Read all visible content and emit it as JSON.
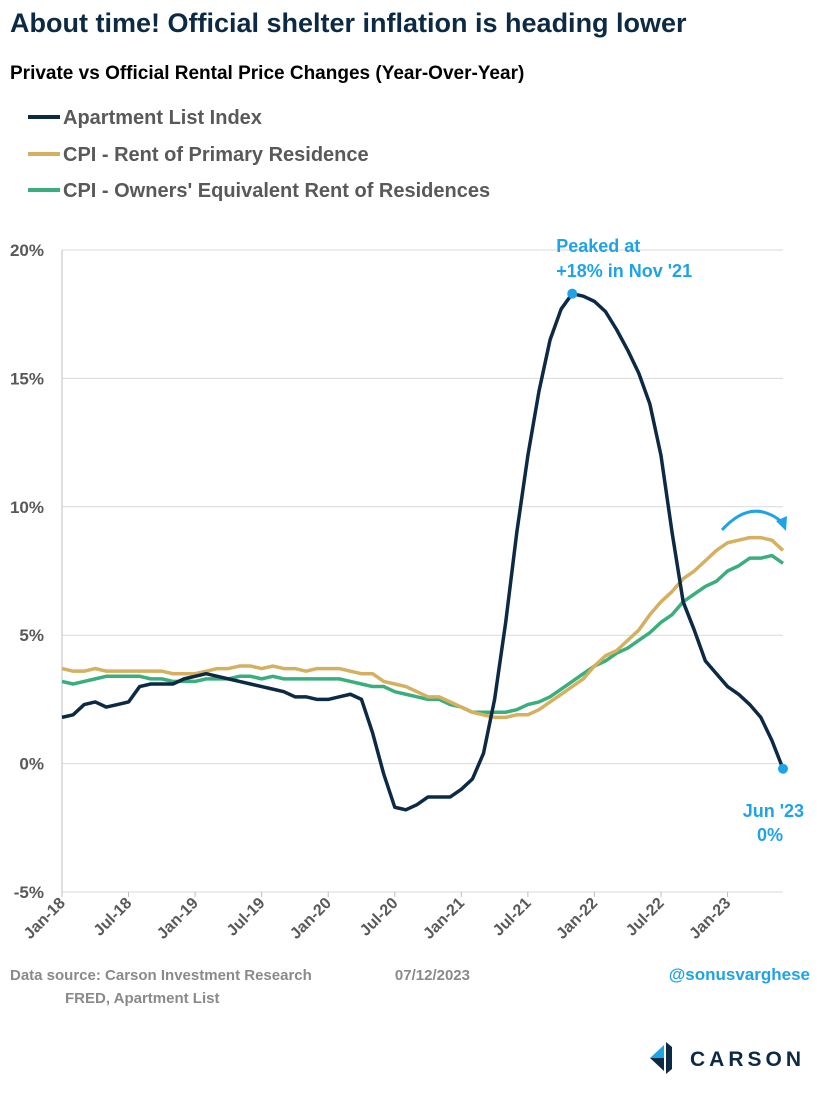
{
  "chart_data": {
    "type": "line",
    "title": "About time! Official shelter inflation is heading lower",
    "subtitle": "Private vs Official Rental Price Changes (Year-Over-Year)",
    "categories": [
      "Jan-18",
      null,
      null,
      null,
      null,
      null,
      "Jul-18",
      null,
      null,
      null,
      null,
      null,
      "Jan-19",
      null,
      null,
      null,
      null,
      null,
      "Jul-19",
      null,
      null,
      null,
      null,
      null,
      "Jan-20",
      null,
      null,
      null,
      null,
      null,
      "Jul-20",
      null,
      null,
      null,
      null,
      null,
      "Jan-21",
      null,
      null,
      null,
      null,
      null,
      "Jul-21",
      null,
      null,
      null,
      null,
      null,
      "Jan-22",
      null,
      null,
      null,
      null,
      null,
      "Jul-22",
      null,
      null,
      null,
      null,
      null,
      "Jan-23",
      null,
      null,
      null,
      null,
      null
    ],
    "series": [
      {
        "name": "Apartment List Index",
        "color": "#0d2a45",
        "values": [
          1.8,
          1.9,
          2.3,
          2.4,
          2.2,
          2.3,
          2.4,
          3.0,
          3.1,
          3.1,
          3.1,
          3.3,
          3.4,
          3.5,
          3.4,
          3.3,
          3.2,
          3.1,
          3.0,
          2.9,
          2.8,
          2.6,
          2.6,
          2.5,
          2.5,
          2.6,
          2.7,
          2.5,
          1.2,
          -0.4,
          -1.7,
          -1.8,
          -1.6,
          -1.3,
          -1.3,
          -1.3,
          -1.0,
          -0.6,
          0.4,
          2.5,
          5.5,
          9.0,
          12.0,
          14.5,
          16.5,
          17.7,
          18.3,
          18.2,
          18.0,
          17.6,
          16.9,
          16.1,
          15.2,
          14.0,
          12.0,
          9.0,
          6.3,
          5.2,
          4.0,
          3.5,
          3.0,
          2.7,
          2.3,
          1.8,
          0.9,
          -0.2
        ]
      },
      {
        "name": "CPI - Rent of Primary Residence",
        "color": "#d4b060",
        "values": [
          3.7,
          3.6,
          3.6,
          3.7,
          3.6,
          3.6,
          3.6,
          3.6,
          3.6,
          3.6,
          3.5,
          3.5,
          3.5,
          3.6,
          3.7,
          3.7,
          3.8,
          3.8,
          3.7,
          3.8,
          3.7,
          3.7,
          3.6,
          3.7,
          3.7,
          3.7,
          3.6,
          3.5,
          3.5,
          3.2,
          3.1,
          3.0,
          2.8,
          2.6,
          2.6,
          2.4,
          2.2,
          2.0,
          1.9,
          1.8,
          1.8,
          1.9,
          1.9,
          2.1,
          2.4,
          2.7,
          3.0,
          3.3,
          3.8,
          4.2,
          4.4,
          4.8,
          5.2,
          5.8,
          6.3,
          6.7,
          7.2,
          7.5,
          7.9,
          8.3,
          8.6,
          8.7,
          8.8,
          8.8,
          8.7,
          8.3
        ]
      },
      {
        "name": "CPI - Owners' Equivalent Rent of Residences",
        "color": "#3aaf7d",
        "values": [
          3.2,
          3.1,
          3.2,
          3.3,
          3.4,
          3.4,
          3.4,
          3.4,
          3.3,
          3.3,
          3.2,
          3.2,
          3.2,
          3.3,
          3.3,
          3.3,
          3.4,
          3.4,
          3.3,
          3.4,
          3.3,
          3.3,
          3.3,
          3.3,
          3.3,
          3.3,
          3.2,
          3.1,
          3.0,
          3.0,
          2.8,
          2.7,
          2.6,
          2.5,
          2.5,
          2.3,
          2.2,
          2.0,
          2.0,
          2.0,
          2.0,
          2.1,
          2.3,
          2.4,
          2.6,
          2.9,
          3.2,
          3.5,
          3.8,
          4.0,
          4.3,
          4.5,
          4.8,
          5.1,
          5.5,
          5.8,
          6.3,
          6.6,
          6.9,
          7.1,
          7.5,
          7.7,
          8.0,
          8.0,
          8.1,
          7.8
        ]
      }
    ],
    "ylim": [
      -5,
      20
    ],
    "yticks": [
      {
        "value": -5,
        "label": "-5%"
      },
      {
        "value": 0,
        "label": "0%"
      },
      {
        "value": 5,
        "label": "5%"
      },
      {
        "value": 10,
        "label": "10%"
      },
      {
        "value": 15,
        "label": "15%"
      },
      {
        "value": 20,
        "label": "20%"
      }
    ],
    "grid": true,
    "legend": "top-left",
    "annotations": [
      [
        "Peaked at",
        "+18% in Nov '21"
      ],
      [
        "Jun '23",
        "0%"
      ]
    ],
    "annotation_color": "#1fa3e8"
  },
  "footer": {
    "source": [
      "Data source: Carson Investment Research",
      "FRED, Apartment List"
    ],
    "date": "07/12/2023",
    "handle": "@sonusvarghese",
    "logo": "CARSON"
  }
}
